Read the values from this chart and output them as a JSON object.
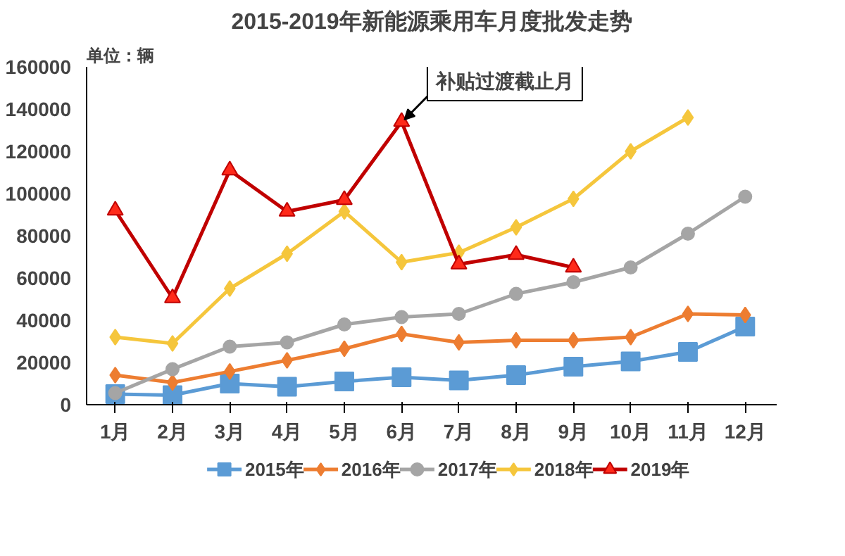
{
  "chart_data": {
    "type": "line",
    "title": "2015-2019年新能源乘用车月度批发走势",
    "ylabel": "单位：辆",
    "categories": [
      "1月",
      "2月",
      "3月",
      "4月",
      "5月",
      "6月",
      "7月",
      "8月",
      "9月",
      "10月",
      "11月",
      "12月"
    ],
    "ylim": [
      0,
      160000
    ],
    "yticks": [
      0,
      20000,
      40000,
      60000,
      80000,
      100000,
      120000,
      140000,
      160000
    ],
    "grid": false,
    "legend": "bottom",
    "annotations": [
      {
        "text": "补贴过渡截止月",
        "x": "6月",
        "y": 134000
      }
    ],
    "series": [
      {
        "name": "2015年",
        "color": "#5b9bd5",
        "marker": "square",
        "values": [
          5000,
          4500,
          10000,
          8500,
          11000,
          13000,
          11500,
          14000,
          18000,
          20500,
          25000,
          37000
        ]
      },
      {
        "name": "2016年",
        "color": "#ed7d31",
        "marker": "diamond",
        "values": [
          14000,
          10500,
          15700,
          21000,
          26500,
          33500,
          29500,
          30500,
          30500,
          32000,
          43000,
          42500
        ]
      },
      {
        "name": "2017年",
        "color": "#a5a5a5",
        "marker": "circle",
        "values": [
          5500,
          16800,
          27500,
          29500,
          38000,
          41500,
          43000,
          52500,
          58000,
          65000,
          81000,
          98500
        ]
      },
      {
        "name": "2018年",
        "color": "#f5c63c",
        "marker": "diamond",
        "values": [
          32000,
          29000,
          55000,
          71500,
          91500,
          67500,
          72000,
          84000,
          97500,
          120000,
          136000,
          null
        ]
      },
      {
        "name": "2019年",
        "color": "#c00000",
        "marker": "triangle",
        "values": [
          92000,
          50500,
          111000,
          91500,
          97000,
          134000,
          66500,
          71000,
          65000,
          null,
          null,
          null
        ]
      }
    ]
  }
}
